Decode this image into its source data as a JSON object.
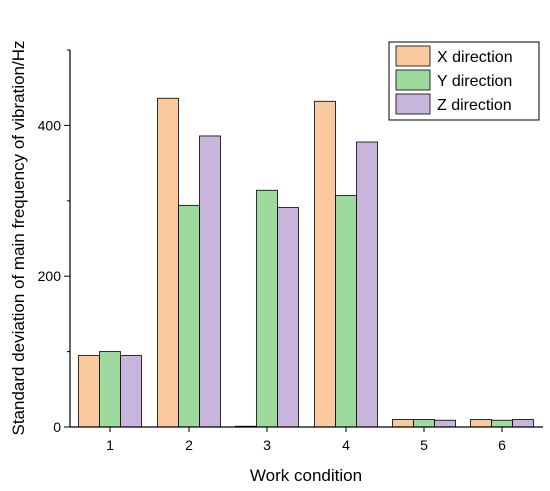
{
  "chart_data": {
    "type": "bar",
    "title": "",
    "xlabel": "Work condition",
    "ylabel": "Standard deviation of main frequency of vibration/Hz",
    "categories": [
      "1",
      "2",
      "3",
      "4",
      "5",
      "6"
    ],
    "series": [
      {
        "name": "X direction",
        "color": "#FBC99E",
        "values": [
          95,
          436,
          1,
          432,
          10,
          10
        ]
      },
      {
        "name": "Y direction",
        "color": "#9ED99E",
        "values": [
          100,
          294,
          314,
          307,
          10,
          9
        ]
      },
      {
        "name": "Z direction",
        "color": "#C7B5DB",
        "values": [
          95,
          386,
          291,
          378,
          9,
          10
        ]
      }
    ],
    "ylim": [
      0,
      500
    ],
    "yticks": [
      0,
      200,
      400
    ],
    "grid": false,
    "legend_position": "top-right"
  }
}
